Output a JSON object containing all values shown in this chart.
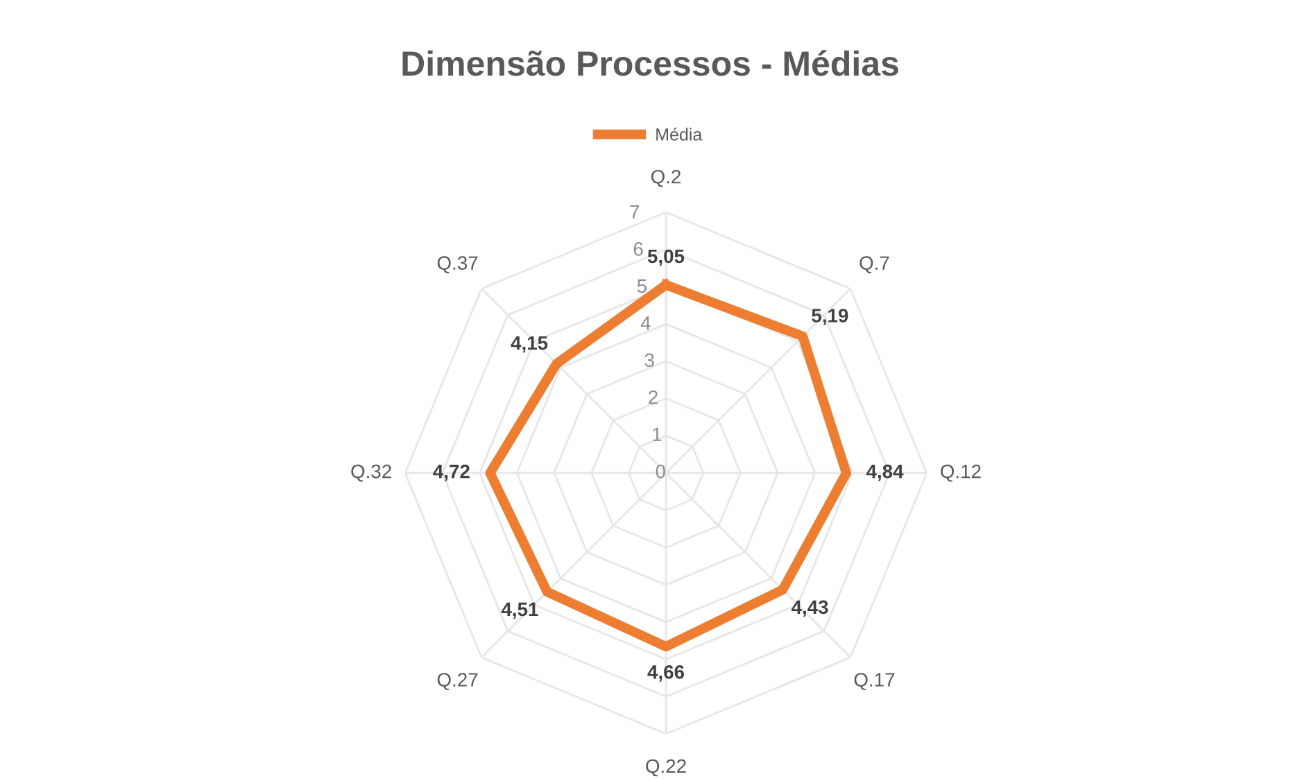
{
  "chart_data": {
    "type": "radar",
    "title": "Dimensão Processos - Médias",
    "categories": [
      "Q.2",
      "Q.7",
      "Q.12",
      "Q.17",
      "Q.22",
      "Q.27",
      "Q.32",
      "Q.37"
    ],
    "series": [
      {
        "name": "Média",
        "color": "#ed7d31",
        "values": [
          5.05,
          5.19,
          4.84,
          4.43,
          4.66,
          4.51,
          4.72,
          4.15
        ]
      }
    ],
    "value_labels": [
      "5,05",
      "5,19",
      "4,84",
      "4,43",
      "4,66",
      "4,51",
      "4,72",
      "4,15"
    ],
    "ylim": [
      0,
      7
    ],
    "yticks": [
      0,
      1,
      2,
      3,
      4,
      5,
      6,
      7
    ],
    "grid": true,
    "legend": "top",
    "marker": "none",
    "line_style": "solid"
  }
}
